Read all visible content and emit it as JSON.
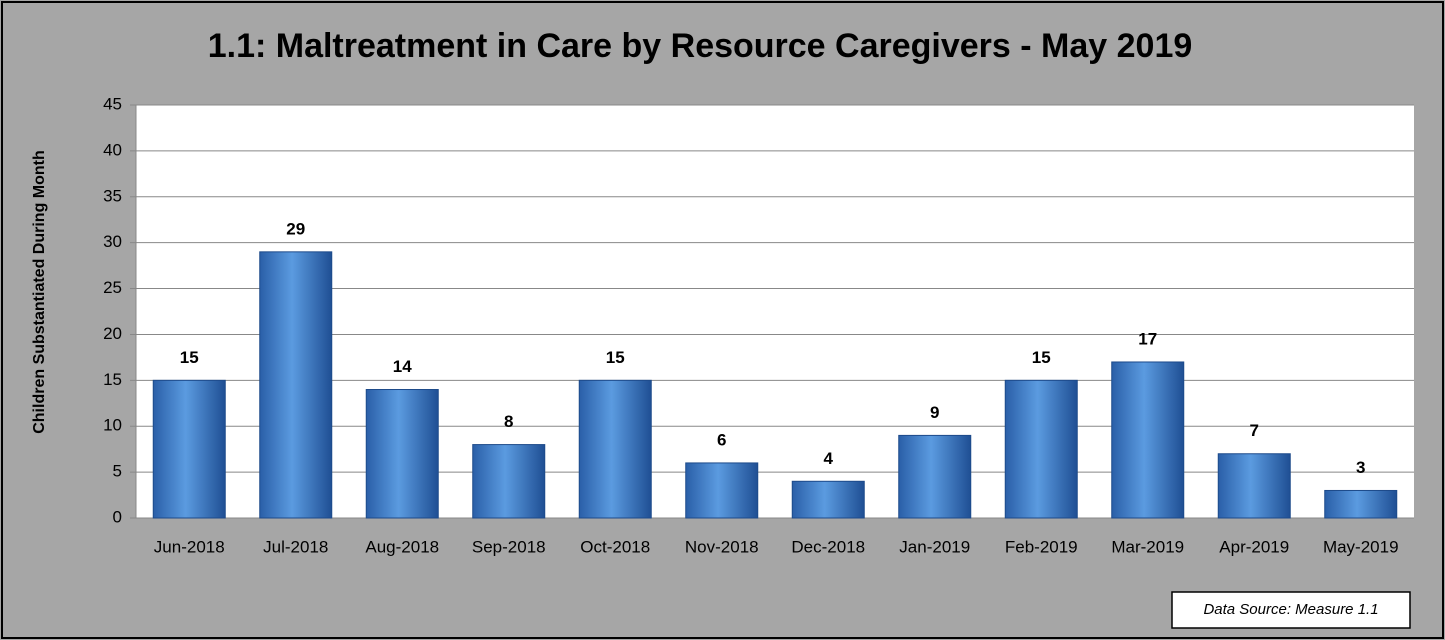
{
  "chart_data": {
    "type": "bar",
    "title": "1.1: Maltreatment in Care by Resource Caregivers - May 2019",
    "y_label": "Children Substantiated During Month",
    "categories": [
      "Jun-2018",
      "Jul-2018",
      "Aug-2018",
      "Sep-2018",
      "Oct-2018",
      "Nov-2018",
      "Dec-2018",
      "Jan-2019",
      "Feb-2019",
      "Mar-2019",
      "Apr-2019",
      "May-2019"
    ],
    "values": [
      15,
      29,
      14,
      8,
      15,
      6,
      4,
      9,
      15,
      17,
      7,
      3
    ],
    "color": "#3a78c8",
    "ylim": [
      0,
      45
    ],
    "yticks": [
      0,
      5,
      10,
      15,
      20,
      25,
      30,
      35,
      40,
      45
    ],
    "grid": true,
    "annotation": "Data Source: Measure 1.1"
  }
}
